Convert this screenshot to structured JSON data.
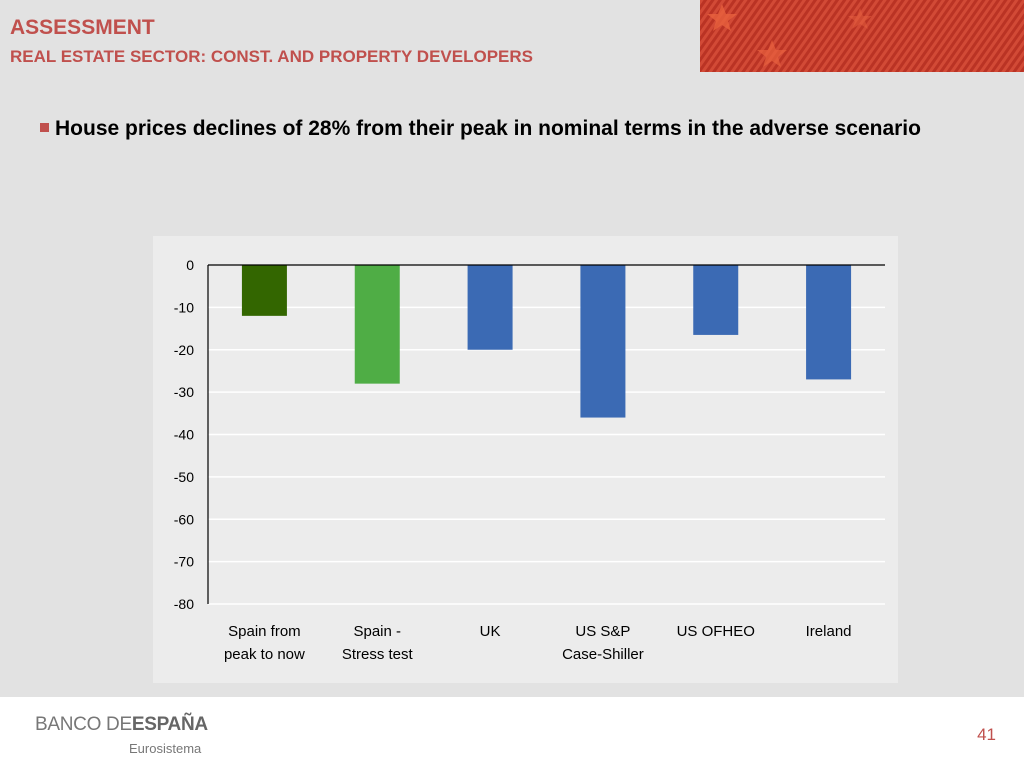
{
  "header": {
    "title": "ASSESSMENT",
    "subtitle": "REAL ESTATE SECTOR: CONST. AND PROPERTY DEVELOPERS"
  },
  "bullet": {
    "text": "House prices declines of 28% from their peak in nominal terms in the adverse scenario"
  },
  "colors": {
    "accent": "#c0504d",
    "spain_now": "#336600",
    "spain_stress": "#4fad45",
    "others": "#3b6ab4"
  },
  "chart_data": {
    "type": "bar",
    "categories": [
      [
        "Spain from",
        "peak to now"
      ],
      [
        "Spain -",
        "Stress test"
      ],
      [
        "UK"
      ],
      [
        "US S&P",
        "Case-Shiller"
      ],
      [
        "US OFHEO"
      ],
      [
        "Ireland"
      ]
    ],
    "values": [
      -12,
      -28,
      -20,
      -36,
      -16.5,
      -27
    ],
    "bar_colors": [
      "#336600",
      "#4fad45",
      "#3b6ab4",
      "#3b6ab4",
      "#3b6ab4",
      "#3b6ab4"
    ],
    "ylim": [
      -80,
      0
    ],
    "yticks": [
      0,
      -10,
      -20,
      -30,
      -40,
      -50,
      -60,
      -70,
      -80
    ],
    "grid": true,
    "xlabel": "",
    "ylabel": ""
  },
  "footer": {
    "logo_regular": "BANCO DE",
    "logo_bold": "ESPAÑA",
    "logo_sub": "Eurosistema",
    "page_number": "41"
  }
}
